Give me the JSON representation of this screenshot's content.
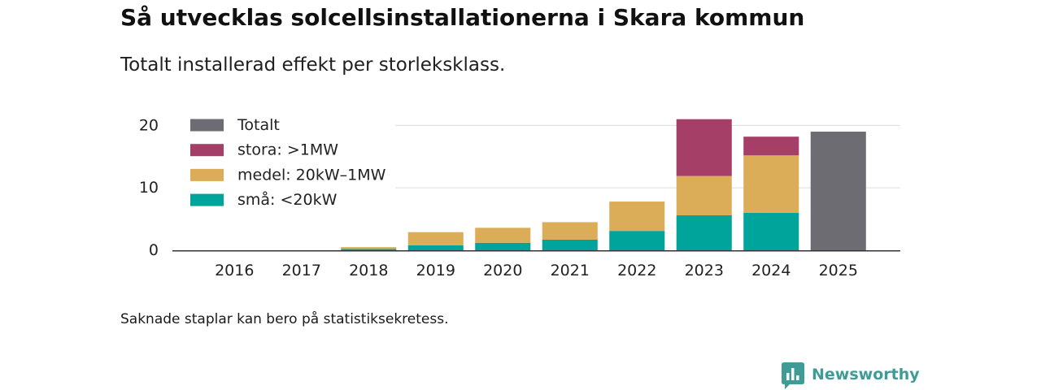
{
  "chart_data": {
    "type": "bar",
    "stacked": true,
    "title": "Så utvecklas solcellsinstallationerna i Skara kommun",
    "subtitle": "Totalt installerad effekt per storleksklass.",
    "note": "Saknade staplar kan bero på statistiksekretess.",
    "categories": [
      "2016",
      "2017",
      "2018",
      "2019",
      "2020",
      "2021",
      "2022",
      "2023",
      "2024",
      "2025"
    ],
    "series": [
      {
        "name": "små: <20kW",
        "color": "#00a49a",
        "values": [
          null,
          null,
          0.2,
          0.8,
          1.2,
          1.7,
          3.1,
          5.6,
          6.0,
          null
        ]
      },
      {
        "name": "medel: 20kW–1MW",
        "color": "#dcad59",
        "values": [
          null,
          null,
          0.3,
          2.1,
          2.4,
          2.8,
          4.7,
          6.3,
          9.2,
          null
        ]
      },
      {
        "name": "stora: >1MW",
        "color": "#a63f68",
        "values": [
          null,
          null,
          null,
          null,
          null,
          null,
          null,
          9.1,
          3.0,
          null
        ]
      },
      {
        "name": "Totalt",
        "color": "#6d6c72",
        "values": [
          null,
          null,
          null,
          null,
          null,
          null,
          null,
          null,
          null,
          19.0
        ]
      }
    ],
    "ylim": [
      0,
      22
    ],
    "yticks": [
      0,
      10,
      20
    ],
    "grid": true,
    "legend": "top-left"
  },
  "logo": {
    "text": "Newsworthy",
    "icon": "newsworthy-chart-bubble-icon",
    "color": "#3f9b96"
  }
}
